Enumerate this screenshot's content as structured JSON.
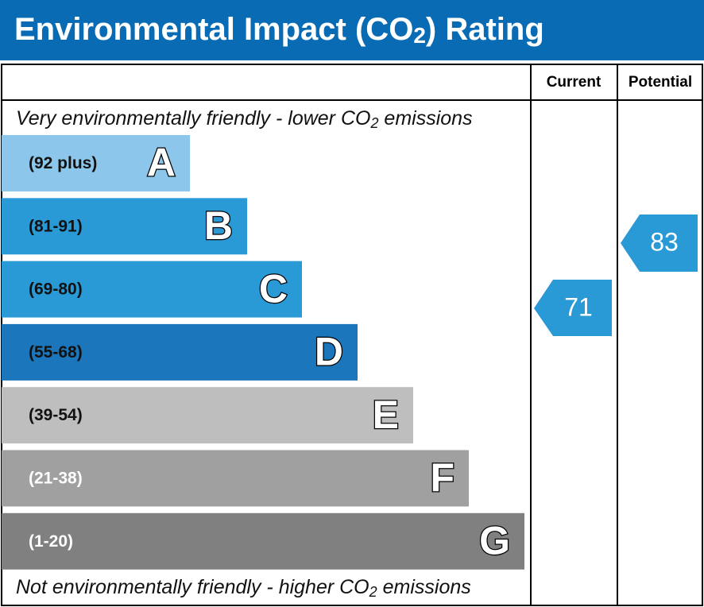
{
  "header": {
    "title": {
      "before": "Environmental Impact (CO",
      "subscript": "2",
      "after": ") Rating"
    }
  },
  "columns": [
    "Current",
    "Potential"
  ],
  "top_note": {
    "before": "Very environmentally friendly - lower CO",
    "subscript": "2",
    "after": " emissions"
  },
  "bands": [
    {
      "range": "(92 plus)",
      "letter": "A",
      "color": "#8cc6ea",
      "text_color": "#111"
    },
    {
      "range": "(81-91)",
      "letter": "B",
      "color": "#2a9ad7",
      "text_color": "#111"
    },
    {
      "range": "(69-80)",
      "letter": "C",
      "color": "#2a9ad7",
      "text_color": "#111"
    },
    {
      "range": "(55-68)",
      "letter": "D",
      "color": "#1b76bc",
      "text_color": "#111"
    },
    {
      "range": "(39-54)",
      "letter": "E",
      "color": "#bebebe",
      "text_color": "#111"
    },
    {
      "range": "(21-38)",
      "letter": "F",
      "color": "#a0a0a0",
      "text_color": "#fff"
    },
    {
      "range": "(1-20)",
      "letter": "G",
      "color": "#808080",
      "text_color": "#fff"
    }
  ],
  "bottom_note": {
    "before": "Not environmentally friendly - higher CO",
    "subscript": "2",
    "after": " emissions"
  },
  "ratings": {
    "current": 71,
    "potential": 83
  }
}
